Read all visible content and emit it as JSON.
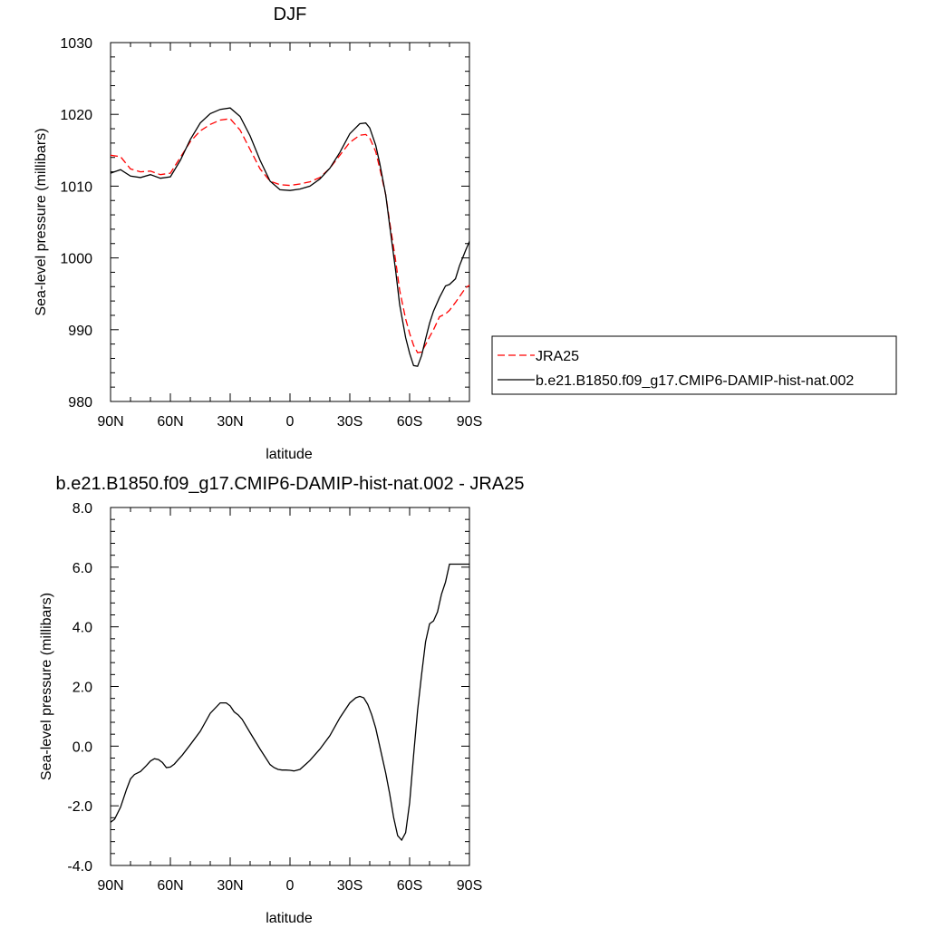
{
  "chart_data": [
    {
      "type": "line",
      "title": "DJF",
      "xlabel": "latitude",
      "ylabel": "Sea-level pressure (millibars)",
      "xlim": [
        90,
        -90
      ],
      "ylim": [
        980,
        1030
      ],
      "x_ticks": [
        90,
        60,
        30,
        0,
        -30,
        -60,
        -90
      ],
      "x_tick_labels": [
        "90N",
        "60N",
        "30N",
        "0",
        "30S",
        "60S",
        "90S"
      ],
      "y_ticks": [
        980,
        990,
        1000,
        1010,
        1020,
        1030
      ],
      "y_tick_labels": [
        "980",
        "990",
        "1000",
        "1010",
        "1020",
        "1030"
      ],
      "legend_position": "right",
      "series": [
        {
          "name": "JRA25",
          "color": "#ff0000",
          "dash": "dashed",
          "x": [
            90,
            85,
            80,
            75,
            70,
            65,
            60,
            55,
            50,
            45,
            40,
            35,
            30,
            25,
            20,
            15,
            10,
            5,
            0,
            -5,
            -10,
            -15,
            -20,
            -25,
            -30,
            -35,
            -38,
            -40,
            -43,
            -45,
            -48,
            -50,
            -53,
            -55,
            -58,
            -60,
            -62,
            -64,
            -66,
            -68,
            -70,
            -72,
            -75,
            -78,
            -80,
            -83,
            -85,
            -88,
            -90
          ],
          "y": [
            1014.3,
            1014.1,
            1012.4,
            1012.0,
            1012.1,
            1011.6,
            1011.8,
            1014.0,
            1016.2,
            1017.7,
            1018.6,
            1019.2,
            1019.4,
            1017.8,
            1015.1,
            1012.4,
            1010.7,
            1010.2,
            1010.1,
            1010.3,
            1010.6,
            1011.2,
            1012.5,
            1014.3,
            1016.1,
            1017.1,
            1017.2,
            1016.7,
            1014.8,
            1012.5,
            1008.8,
            1005.0,
            999.6,
            995.5,
            991.5,
            989.5,
            987.8,
            986.8,
            986.9,
            987.9,
            989.0,
            990.0,
            991.8,
            992.2,
            992.7,
            993.8,
            994.6,
            995.8,
            996.2
          ]
        },
        {
          "name": "b.e21.B1850.f09_g17.CMIP6-DAMIP-hist-nat.002",
          "color": "#000000",
          "dash": "solid",
          "x": [
            90,
            85,
            80,
            75,
            70,
            65,
            60,
            55,
            50,
            45,
            40,
            35,
            30,
            25,
            20,
            15,
            10,
            5,
            0,
            -5,
            -10,
            -15,
            -20,
            -25,
            -30,
            -35,
            -38,
            -40,
            -43,
            -45,
            -48,
            -50,
            -53,
            -55,
            -58,
            -60,
            -62,
            -64,
            -66,
            -68,
            -70,
            -72,
            -75,
            -78,
            -80,
            -83,
            -85,
            -88,
            -90
          ],
          "y": [
            1011.8,
            1012.3,
            1011.4,
            1011.2,
            1011.6,
            1011.1,
            1011.3,
            1013.6,
            1016.5,
            1018.8,
            1020.1,
            1020.7,
            1020.9,
            1019.7,
            1017.0,
            1013.6,
            1010.7,
            1009.5,
            1009.4,
            1009.6,
            1010.0,
            1011.0,
            1012.5,
            1014.7,
            1017.3,
            1018.7,
            1018.8,
            1018.1,
            1015.7,
            1013.2,
            1008.8,
            1004.5,
            998.2,
            993.5,
            988.9,
            986.7,
            985.0,
            984.9,
            986.4,
            988.7,
            990.9,
            992.6,
            994.5,
            996.1,
            996.3,
            997.1,
            998.9,
            1001.0,
            1002.3
          ]
        }
      ]
    },
    {
      "type": "line",
      "title": "b.e21.B1850.f09_g17.CMIP6-DAMIP-hist-nat.002 - JRA25",
      "xlabel": "latitude",
      "ylabel": "Sea-level pressure (millibars)",
      "xlim": [
        90,
        -90
      ],
      "ylim": [
        -4,
        8
      ],
      "x_ticks": [
        90,
        60,
        30,
        0,
        -30,
        -60,
        -90
      ],
      "x_tick_labels": [
        "90N",
        "60N",
        "30N",
        "0",
        "30S",
        "60S",
        "90S"
      ],
      "y_ticks": [
        -4,
        -2,
        0,
        2,
        4,
        6,
        8
      ],
      "y_tick_labels": [
        "-4.0",
        "-2.0",
        "0.0",
        "2.0",
        "4.0",
        "6.0",
        "8.0"
      ],
      "series": [
        {
          "color": "#000000",
          "dash": "solid",
          "x": [
            90,
            88,
            85,
            82,
            80,
            78,
            75,
            72,
            70,
            68,
            66,
            64,
            62,
            60,
            58,
            56,
            54,
            50,
            45,
            40,
            35,
            32,
            30,
            28,
            26,
            24,
            20,
            15,
            10,
            8,
            6,
            4,
            2,
            0,
            -2,
            -5,
            -8,
            -10,
            -15,
            -20,
            -25,
            -30,
            -33,
            -35,
            -37,
            -39,
            -41,
            -43,
            -45,
            -48,
            -50,
            -52,
            -54,
            -56,
            -58,
            -60,
            -62,
            -64,
            -66,
            -68,
            -70,
            -72,
            -74,
            -76,
            -78,
            -80,
            -82,
            -84,
            -86,
            -88,
            -90
          ],
          "y": [
            -2.55,
            -2.45,
            -2.05,
            -1.45,
            -1.1,
            -0.95,
            -0.85,
            -0.65,
            -0.5,
            -0.42,
            -0.45,
            -0.55,
            -0.72,
            -0.7,
            -0.6,
            -0.45,
            -0.3,
            0.05,
            0.5,
            1.1,
            1.45,
            1.45,
            1.35,
            1.15,
            1.05,
            0.9,
            0.45,
            -0.1,
            -0.62,
            -0.72,
            -0.78,
            -0.8,
            -0.8,
            -0.81,
            -0.83,
            -0.78,
            -0.6,
            -0.48,
            -0.1,
            0.35,
            0.95,
            1.45,
            1.62,
            1.67,
            1.62,
            1.4,
            1.05,
            0.6,
            0.0,
            -0.9,
            -1.6,
            -2.4,
            -3.0,
            -3.15,
            -2.9,
            -1.9,
            -0.3,
            1.2,
            2.4,
            3.5,
            4.1,
            4.2,
            4.5,
            5.1,
            5.5,
            6.1,
            6.1,
            6.1,
            6.1,
            6.1,
            6.1
          ]
        }
      ]
    }
  ]
}
